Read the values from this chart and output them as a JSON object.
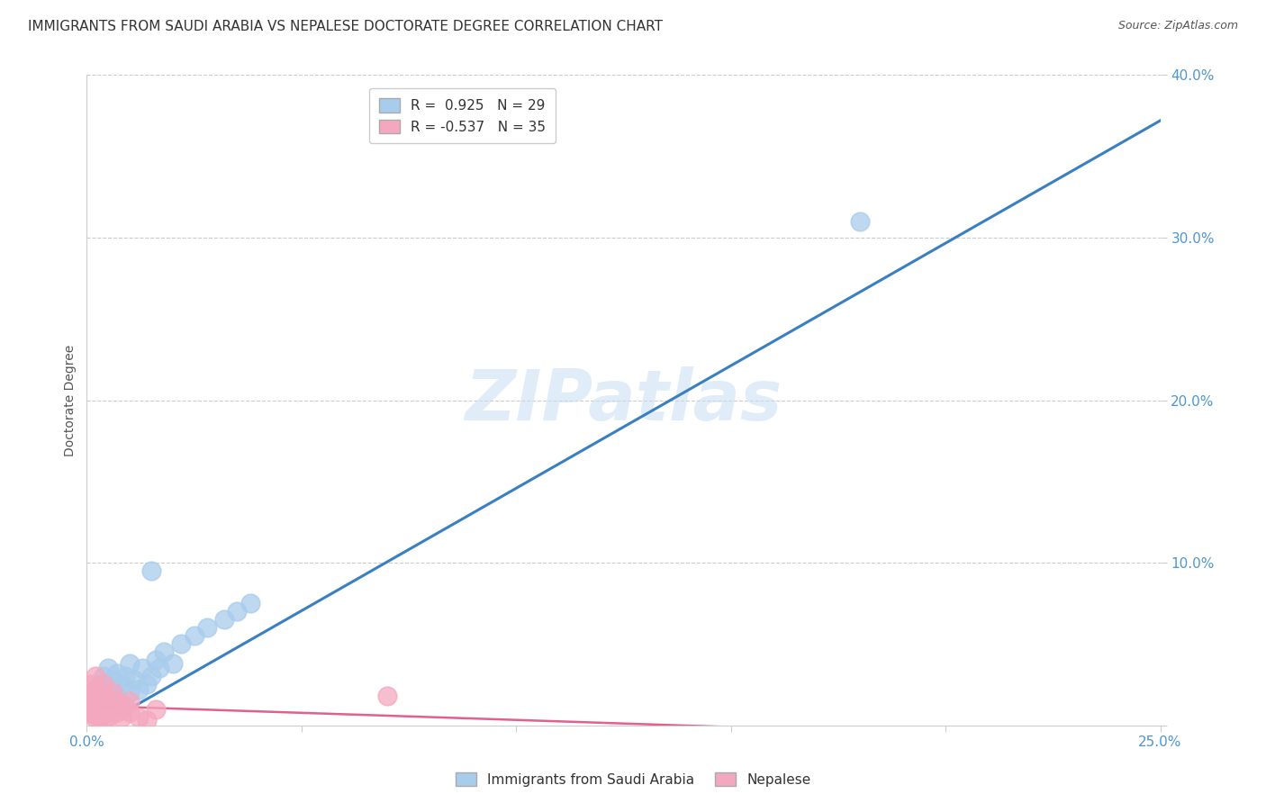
{
  "title": "IMMIGRANTS FROM SAUDI ARABIA VS NEPALESE DOCTORATE DEGREE CORRELATION CHART",
  "source": "Source: ZipAtlas.com",
  "ylabel": "Doctorate Degree",
  "xlim": [
    0,
    0.25
  ],
  "ylim": [
    0,
    0.4
  ],
  "blue_R": 0.925,
  "blue_N": 29,
  "pink_R": -0.537,
  "pink_N": 35,
  "blue_color": "#a8ccec",
  "pink_color": "#f4a8bf",
  "blue_line_color": "#3a7fc1",
  "pink_line_color": "#e06090",
  "watermark": "ZIPatlas",
  "blue_scatter_x": [
    0.003,
    0.004,
    0.005,
    0.005,
    0.006,
    0.006,
    0.007,
    0.007,
    0.008,
    0.009,
    0.01,
    0.01,
    0.011,
    0.012,
    0.013,
    0.014,
    0.015,
    0.016,
    0.017,
    0.018,
    0.02,
    0.022,
    0.025,
    0.028,
    0.032,
    0.035,
    0.038,
    0.015,
    0.18
  ],
  "blue_scatter_y": [
    0.025,
    0.03,
    0.02,
    0.035,
    0.022,
    0.028,
    0.018,
    0.032,
    0.025,
    0.03,
    0.02,
    0.038,
    0.028,
    0.022,
    0.035,
    0.025,
    0.03,
    0.04,
    0.035,
    0.045,
    0.038,
    0.05,
    0.055,
    0.06,
    0.065,
    0.07,
    0.075,
    0.095,
    0.31
  ],
  "pink_scatter_x": [
    0.001,
    0.001,
    0.001,
    0.001,
    0.001,
    0.002,
    0.002,
    0.002,
    0.002,
    0.002,
    0.003,
    0.003,
    0.003,
    0.003,
    0.004,
    0.004,
    0.004,
    0.004,
    0.005,
    0.005,
    0.005,
    0.006,
    0.006,
    0.007,
    0.007,
    0.008,
    0.008,
    0.009,
    0.01,
    0.01,
    0.012,
    0.014,
    0.016,
    0.07,
    0.002
  ],
  "pink_scatter_y": [
    0.01,
    0.015,
    0.02,
    0.008,
    0.025,
    0.012,
    0.018,
    0.022,
    0.006,
    0.03,
    0.008,
    0.015,
    0.02,
    0.005,
    0.01,
    0.018,
    0.025,
    0.003,
    0.008,
    0.015,
    0.005,
    0.01,
    0.02,
    0.008,
    0.015,
    0.01,
    0.005,
    0.012,
    0.008,
    0.015,
    0.005,
    0.003,
    0.01,
    0.018,
    0.004
  ],
  "blue_line_x": [
    0.0,
    0.25
  ],
  "blue_line_y": [
    -0.005,
    0.372
  ],
  "pink_line_x": [
    0.0,
    0.16
  ],
  "pink_line_y": [
    0.012,
    -0.002
  ],
  "grid_color": "#cccccc",
  "background_color": "#ffffff",
  "title_fontsize": 11,
  "axis_label_fontsize": 10,
  "tick_fontsize": 11,
  "legend_fontsize": 11,
  "tick_color": "#4d96d4"
}
